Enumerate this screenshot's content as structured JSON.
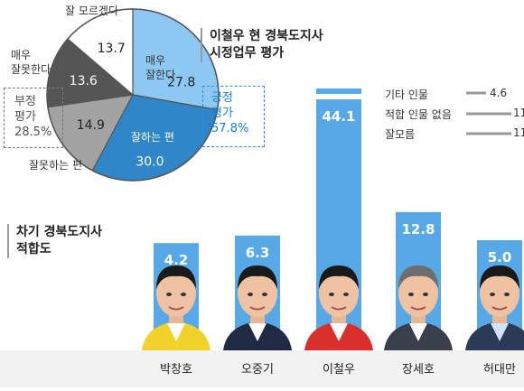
{
  "pie_title": [
    "이철우 현 경북도지사",
    "시정업무 평가"
  ],
  "bar_title": [
    "차기 경북도지사",
    "적합도"
  ],
  "pie_labels": {
    "dont_know": "잘 모르겠다",
    "very_bad": [
      "매우",
      "잘못한다"
    ],
    "very_good": [
      "매우",
      "잘한다"
    ],
    "good": "잘하는 편",
    "bad": "잘못하는 편"
  },
  "negative_group": {
    "label": [
      "부정",
      "평가"
    ],
    "value": "28.5%"
  },
  "positive_group": {
    "label": [
      "긍정",
      "평가"
    ],
    "value": "57.8%"
  },
  "other_legend": [
    {
      "label": "기타 인물",
      "value": "4.6"
    },
    {
      "label": "적합 인물 없음",
      "value": "11"
    },
    {
      "label": "잘모름",
      "value": "11"
    }
  ],
  "chart_data": [
    {
      "type": "pie",
      "title": "이철우 현 경북도지사 시정업무 평가",
      "slices": [
        {
          "name": "매우 잘한다",
          "value": 27.8,
          "display": "27.8",
          "color": "#8cc8f2"
        },
        {
          "name": "잘하는 편",
          "value": 30.0,
          "display": "30.0",
          "color": "#2f86c8"
        },
        {
          "name": "잘못하는 편",
          "value": 14.9,
          "display": "14.9",
          "color": "#a3a3a3"
        },
        {
          "name": "매우 잘못한다",
          "value": 13.6,
          "display": "13.6",
          "color": "#555555"
        },
        {
          "name": "잘 모르겠다",
          "value": 13.7,
          "display": "13.7",
          "color": "#ffffff"
        }
      ]
    },
    {
      "type": "bar",
      "title": "차기 경북도지사 적합도",
      "categories": [
        "박창호",
        "오중기",
        "이철우",
        "장세호",
        "허대만"
      ],
      "values": [
        4.2,
        6.3,
        44.1,
        12.8,
        5.0
      ],
      "labels": [
        "4.2",
        "6.3",
        "44.1",
        "12.8",
        "5.0"
      ],
      "color": "#56a9e6",
      "ylim": [
        0,
        50
      ]
    }
  ]
}
